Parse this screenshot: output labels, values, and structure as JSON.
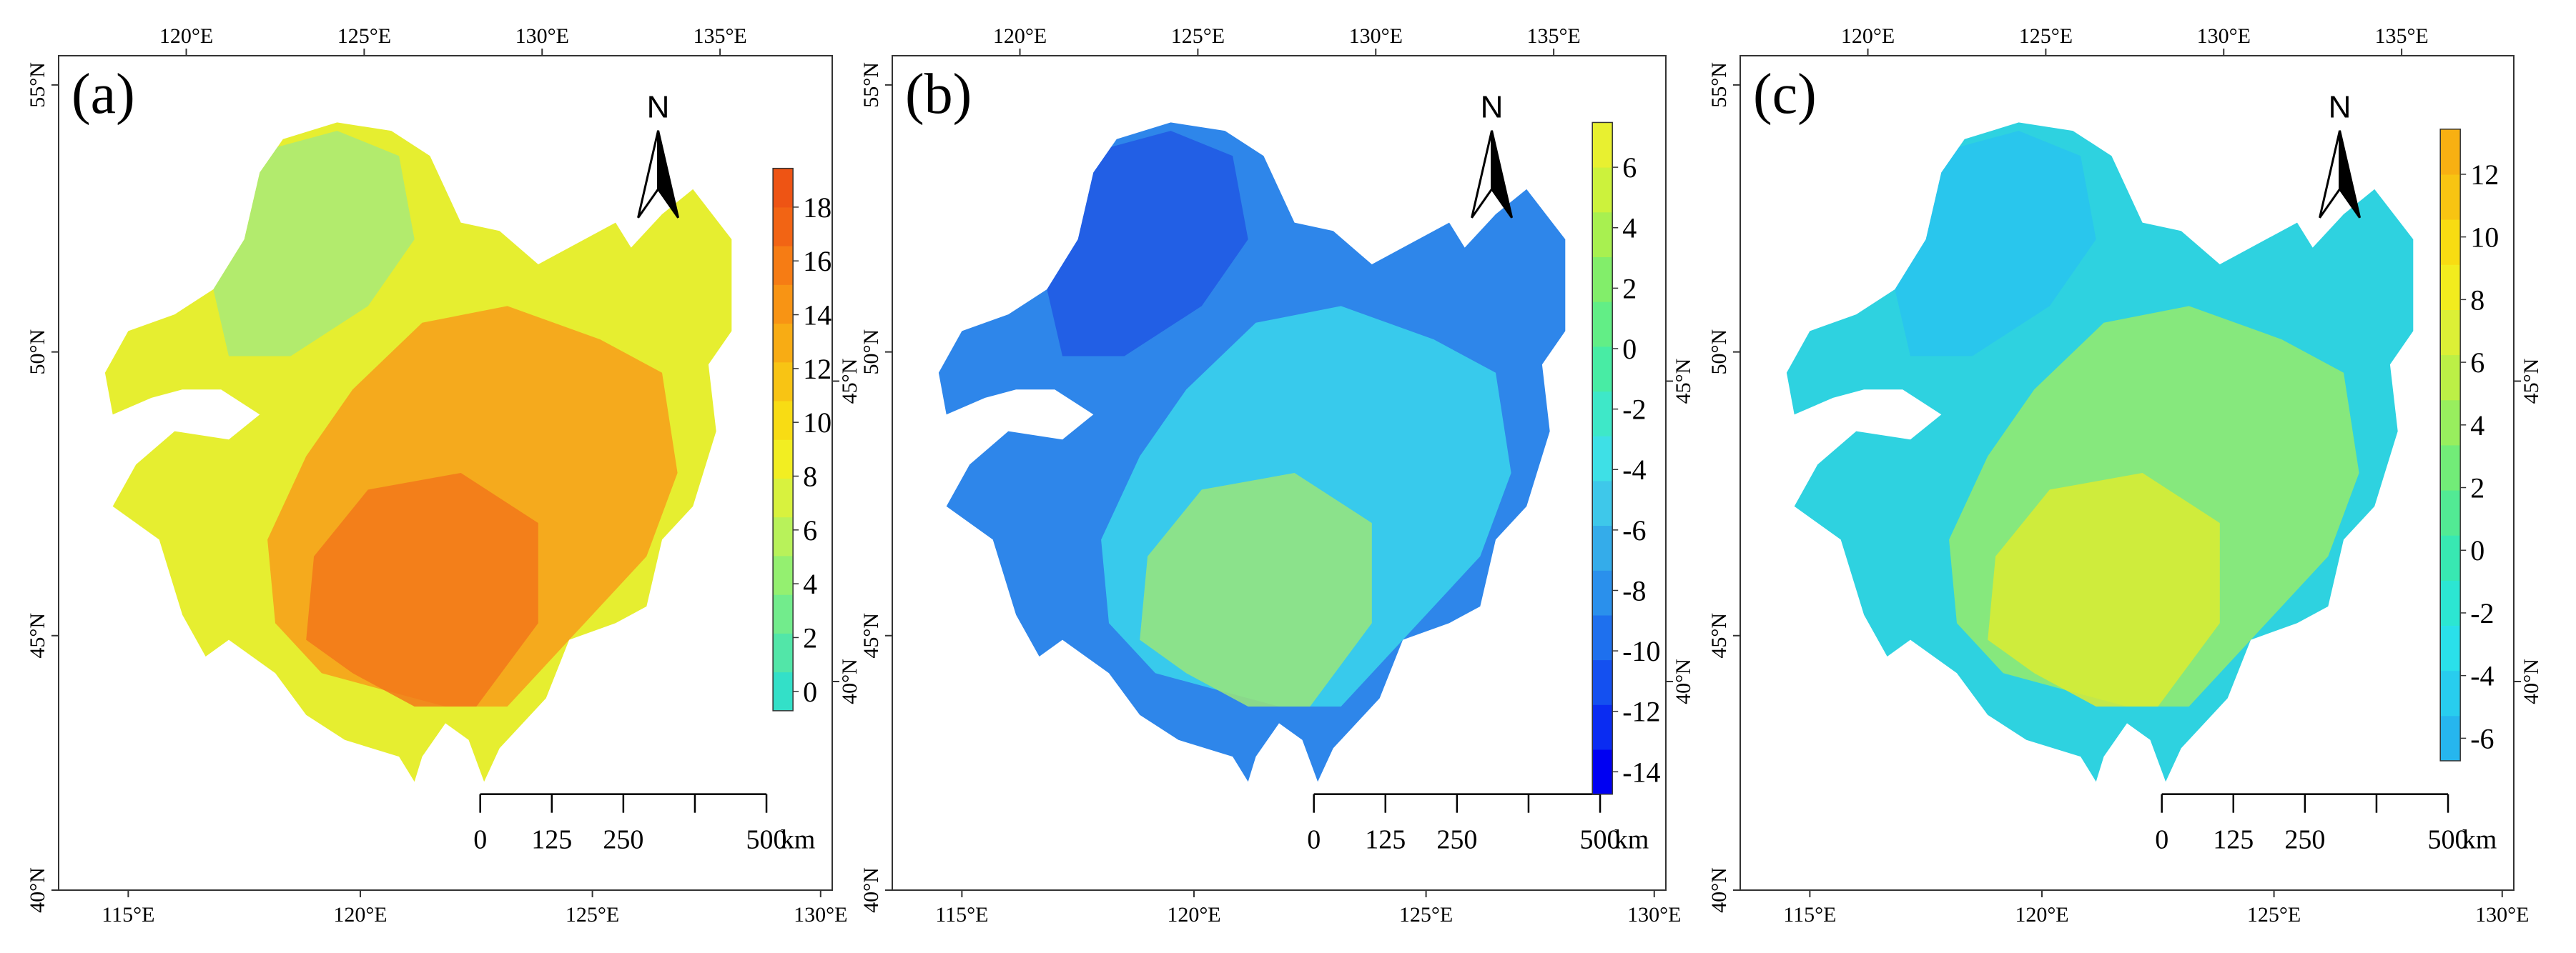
{
  "figure": {
    "north_label": "N",
    "panels": [
      {
        "id": "a",
        "label": "(a)",
        "colorbar": {
          "ticks": [
            "0",
            "2",
            "4",
            "6",
            "8",
            "10",
            "12",
            "14",
            "16",
            "18"
          ],
          "colors": [
            "#33e0c8",
            "#52e6a8",
            "#72ec8c",
            "#94f070",
            "#b8f25a",
            "#d8f23e",
            "#f2ee22",
            "#f8dc14",
            "#f8c414",
            "#f8ac14",
            "#f89414",
            "#f67c14",
            "#f26414",
            "#ee5414"
          ]
        },
        "map_colors": {
          "outer": "#e6ee30",
          "inner": "#f6a21c",
          "core": "#f2781a",
          "north": "#a8ea78"
        }
      },
      {
        "id": "b",
        "label": "(b)",
        "colorbar": {
          "ticks": [
            "-14",
            "-12",
            "-10",
            "-8",
            "-6",
            "-4",
            "-2",
            "0",
            "2",
            "4",
            "6"
          ],
          "colors": [
            "#0000f2",
            "#0a2cf2",
            "#1450f0",
            "#1e70ee",
            "#2a90ec",
            "#34acea",
            "#3ec8ea",
            "#3ee0e6",
            "#3ee8c8",
            "#48eca4",
            "#62ee86",
            "#82ee6a",
            "#a8f050",
            "#ccf23c",
            "#e8f030"
          ]
        },
        "map_colors": {
          "outer": "#2e86ea",
          "inner": "#3ad2ec",
          "core": "#9ae67a",
          "north": "#2058e4"
        }
      },
      {
        "id": "c",
        "label": "(c)",
        "colorbar": {
          "ticks": [
            "-6",
            "-4",
            "-2",
            "0",
            "2",
            "4",
            "6",
            "8",
            "10",
            "12"
          ],
          "colors": [
            "#26b6ee",
            "#28cdee",
            "#2ae0ea",
            "#2ce6d2",
            "#38e8b2",
            "#52ea94",
            "#72ec78",
            "#98ee5e",
            "#bcf046",
            "#dcf036",
            "#f2ec1e",
            "#f8dc12",
            "#f8c412",
            "#f8b012"
          ]
        },
        "map_colors": {
          "outer": "#2ed2e0",
          "inner": "#90ea72",
          "core": "#dcec30",
          "north": "#28c4ee"
        }
      }
    ],
    "axes": {
      "top_lon": [
        "120°E",
        "125°E",
        "130°E",
        "135°E"
      ],
      "bottom_lon": [
        "115°E",
        "120°E",
        "125°E",
        "130°E"
      ],
      "left_lat": [
        "55°N",
        "50°N",
        "45°N",
        "40°N"
      ],
      "right_lat": [
        "45°N",
        "40°N"
      ]
    },
    "scale_bar": {
      "labels": [
        "0",
        "125",
        "250",
        "500"
      ],
      "unit": "km"
    }
  }
}
